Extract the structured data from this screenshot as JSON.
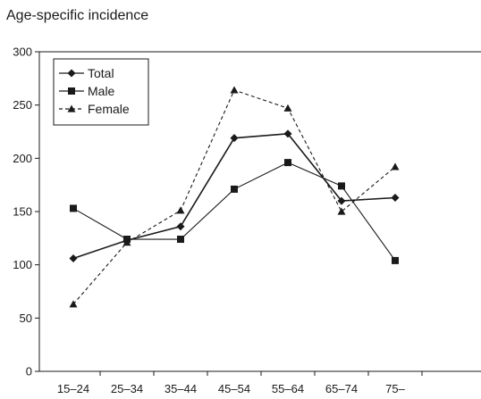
{
  "chart_data": {
    "type": "line",
    "title": "Age-specific incidence",
    "xlabel": "",
    "ylabel": "",
    "categories": [
      "15–24",
      "25–34",
      "35–44",
      "45–54",
      "55–64",
      "65–74",
      "75–"
    ],
    "ylim": [
      0,
      300
    ],
    "yticks": [
      0,
      50,
      100,
      150,
      200,
      250,
      300
    ],
    "grid": false,
    "legend_position": "top-left",
    "series": [
      {
        "name": "Total",
        "marker": "diamond",
        "dash": "solid",
        "values": [
          106,
          123,
          136,
          219,
          223,
          160,
          163
        ]
      },
      {
        "name": "Male",
        "marker": "square",
        "dash": "solid",
        "values": [
          153,
          124,
          124,
          171,
          196,
          174,
          104
        ]
      },
      {
        "name": "Female",
        "marker": "triangle",
        "dash": "dashed",
        "values": [
          63,
          121,
          151,
          264,
          247,
          150,
          192
        ]
      }
    ]
  }
}
